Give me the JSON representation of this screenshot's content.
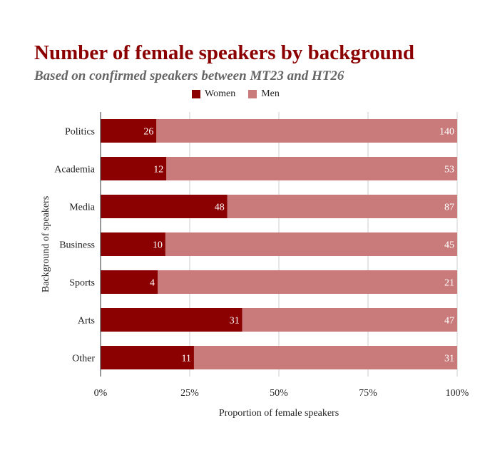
{
  "chart_data": {
    "type": "bar",
    "stacked": "percent",
    "orientation": "horizontal",
    "title": "Number of female speakers by background",
    "subtitle": "Based on confirmed speakers between MT23 and HT26",
    "xlabel": "Proportion of female speakers",
    "ylabel": "Background of speakers",
    "categories": [
      "Politics",
      "Academia",
      "Media",
      "Business",
      "Sports",
      "Arts",
      "Other"
    ],
    "series": [
      {
        "name": "Women",
        "values": [
          26,
          12,
          48,
          10,
          4,
          31,
          11
        ],
        "color": "#8b0000"
      },
      {
        "name": "Men",
        "values": [
          140,
          53,
          87,
          45,
          21,
          47,
          31
        ],
        "color": "#c97b7b"
      }
    ],
    "x_ticks": [
      "0%",
      "25%",
      "50%",
      "75%",
      "100%"
    ],
    "xlim": [
      0,
      1
    ],
    "grid": true,
    "legend_position": "top"
  }
}
